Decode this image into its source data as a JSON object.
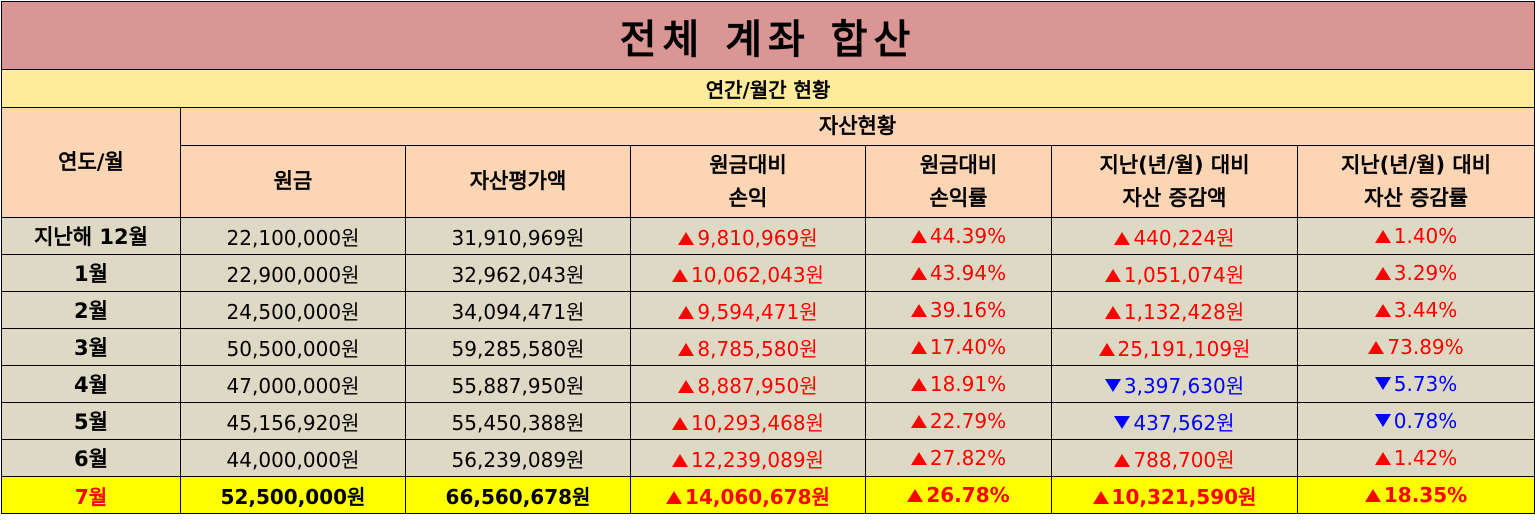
{
  "title": "전체 계좌 합산",
  "subtitle": "연간/월간 현황",
  "header": {
    "year_month": "연도/월",
    "group": "자산현황",
    "columns": [
      [
        "원금"
      ],
      [
        "자산평가액"
      ],
      [
        "원금대비",
        "손익"
      ],
      [
        "원금대비",
        "손익률"
      ],
      [
        "지난(년/월) 대비",
        "자산 증감액"
      ],
      [
        "지난(년/월) 대비",
        "자산 증감률"
      ]
    ]
  },
  "rows": [
    {
      "label": "지난해 12월",
      "principal": "22,100,000원",
      "value": "31,910,969원",
      "pl": {
        "dir": "up",
        "text": "9,810,969원"
      },
      "pl_rate": {
        "dir": "up",
        "text": "44.39%"
      },
      "chg": {
        "dir": "up",
        "text": "440,224원"
      },
      "chg_rate": {
        "dir": "up",
        "text": "1.40%"
      }
    },
    {
      "label": "1월",
      "principal": "22,900,000원",
      "value": "32,962,043원",
      "pl": {
        "dir": "up",
        "text": "10,062,043원"
      },
      "pl_rate": {
        "dir": "up",
        "text": "43.94%"
      },
      "chg": {
        "dir": "up",
        "text": "1,051,074원"
      },
      "chg_rate": {
        "dir": "up",
        "text": "3.29%"
      }
    },
    {
      "label": "2월",
      "principal": "24,500,000원",
      "value": "34,094,471원",
      "pl": {
        "dir": "up",
        "text": "9,594,471원"
      },
      "pl_rate": {
        "dir": "up",
        "text": "39.16%"
      },
      "chg": {
        "dir": "up",
        "text": "1,132,428원"
      },
      "chg_rate": {
        "dir": "up",
        "text": "3.44%"
      }
    },
    {
      "label": "3월",
      "principal": "50,500,000원",
      "value": "59,285,580원",
      "pl": {
        "dir": "up",
        "text": "8,785,580원"
      },
      "pl_rate": {
        "dir": "up",
        "text": "17.40%"
      },
      "chg": {
        "dir": "up",
        "text": "25,191,109원"
      },
      "chg_rate": {
        "dir": "up",
        "text": "73.89%"
      }
    },
    {
      "label": "4월",
      "principal": "47,000,000원",
      "value": "55,887,950원",
      "pl": {
        "dir": "up",
        "text": "8,887,950원"
      },
      "pl_rate": {
        "dir": "up",
        "text": "18.91%"
      },
      "chg": {
        "dir": "down",
        "text": "3,397,630원"
      },
      "chg_rate": {
        "dir": "down",
        "text": "5.73%"
      }
    },
    {
      "label": "5월",
      "principal": "45,156,920원",
      "value": "55,450,388원",
      "pl": {
        "dir": "up",
        "text": "10,293,468원"
      },
      "pl_rate": {
        "dir": "up",
        "text": "22.79%"
      },
      "chg": {
        "dir": "down",
        "text": "437,562원"
      },
      "chg_rate": {
        "dir": "down",
        "text": "0.78%"
      }
    },
    {
      "label": "6월",
      "principal": "44,000,000원",
      "value": "56,239,089원",
      "pl": {
        "dir": "up",
        "text": "12,239,089원"
      },
      "pl_rate": {
        "dir": "up",
        "text": "27.82%"
      },
      "chg": {
        "dir": "up",
        "text": "788,700원"
      },
      "chg_rate": {
        "dir": "up",
        "text": "1.42%"
      }
    },
    {
      "label": "7월",
      "highlight": true,
      "principal": "52,500,000원",
      "value": "66,560,678원",
      "pl": {
        "dir": "up",
        "text": "14,060,678원"
      },
      "pl_rate": {
        "dir": "up",
        "text": "26.78%"
      },
      "chg": {
        "dir": "up",
        "text": "10,321,590원"
      },
      "chg_rate": {
        "dir": "up",
        "text": "18.35%"
      }
    }
  ],
  "colors": {
    "up": "#ff0000",
    "down": "#0000ff",
    "title_bg": "#da9694",
    "subtitle_bg": "#ffeb9c",
    "header_bg": "#fcd5b4",
    "row_bg": "#ddd9c4",
    "highlight_bg": "#ffff00"
  },
  "icons": {
    "up": "triangle-up-icon",
    "down": "triangle-down-icon"
  }
}
